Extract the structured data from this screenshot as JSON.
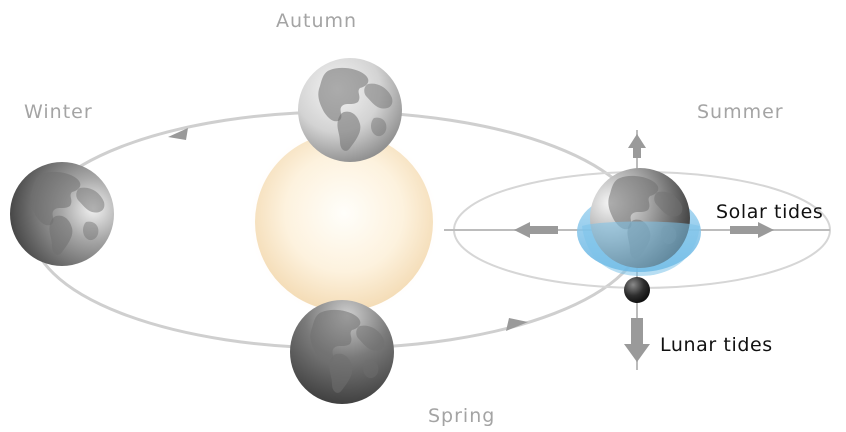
{
  "seasons": {
    "autumn": "Autumn",
    "winter": "Winter",
    "summer": "Summer",
    "spring": "Spring"
  },
  "tides": {
    "solar": "Solar tides",
    "lunar": "Lunar tides"
  },
  "colors": {
    "background": "#ffffff",
    "orbit_line": "#cfcfcf",
    "arrow": "#9a9a9a",
    "sun_core": "#fffdf6",
    "sun_edge": "#f7e3c2",
    "earth_light": "#f2f2f2",
    "earth_dark": "#4a4a4a",
    "tidal_bulge": "#7cc2ea",
    "moon": "#2e2e2e",
    "season_text": "#a4a4a4",
    "tide_text": "#111111"
  },
  "icons": {
    "sun": "sun-icon",
    "earth": "earth-globe-icon",
    "moon": "moon-icon",
    "arrow": "arrow-icon"
  }
}
